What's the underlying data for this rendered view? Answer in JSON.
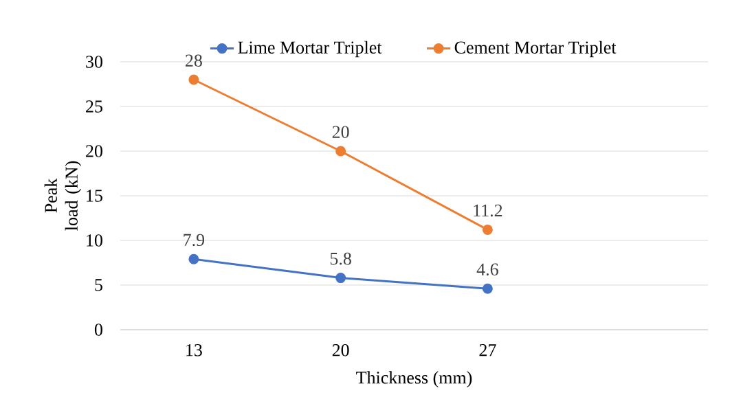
{
  "chart_data": {
    "type": "line",
    "xlabel": "Thickness  (mm)",
    "ylabel": "Peak load (kN)",
    "categories": [
      "13",
      "20",
      "27",
      null
    ],
    "series": [
      {
        "name": "Lime Mortar Triplet",
        "color": "#4472c4",
        "values": [
          7.9,
          5.8,
          4.6,
          null
        ]
      },
      {
        "name": "Cement Mortar Triplet",
        "color": "#ed7d31",
        "values": [
          28,
          20,
          11.2,
          null
        ]
      }
    ],
    "ylim": [
      0,
      30
    ],
    "yticks": [
      0,
      5,
      10,
      15,
      20,
      25,
      30
    ],
    "grid": "y",
    "legend": "top",
    "marker": "circle",
    "line_style": "solid",
    "data_labels": true
  }
}
